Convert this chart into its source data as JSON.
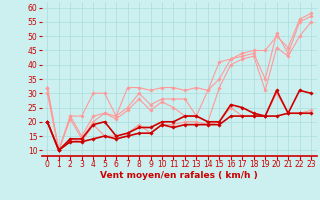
{
  "x": [
    0,
    1,
    2,
    3,
    4,
    5,
    6,
    7,
    8,
    9,
    10,
    11,
    12,
    13,
    14,
    15,
    16,
    17,
    18,
    19,
    20,
    21,
    22,
    23
  ],
  "series": [
    {
      "color": "#FF9999",
      "lw": 0.8,
      "marker": "D",
      "ms": 1.8,
      "y": [
        32,
        10,
        22,
        22,
        30,
        30,
        22,
        32,
        32,
        31,
        32,
        32,
        31,
        32,
        31,
        41,
        42,
        44,
        45,
        45,
        50,
        46,
        56,
        58
      ]
    },
    {
      "color": "#FF9999",
      "lw": 0.8,
      "marker": "D",
      "ms": 1.8,
      "y": [
        32,
        10,
        22,
        15,
        22,
        23,
        22,
        25,
        30,
        26,
        28,
        28,
        28,
        22,
        31,
        35,
        42,
        43,
        44,
        35,
        51,
        44,
        55,
        57
      ]
    },
    {
      "color": "#FF9999",
      "lw": 0.8,
      "marker": "D",
      "ms": 1.8,
      "y": [
        30,
        10,
        21,
        14,
        20,
        23,
        21,
        24,
        28,
        24,
        27,
        25,
        22,
        22,
        20,
        32,
        40,
        42,
        43,
        31,
        46,
        43,
        50,
        55
      ]
    },
    {
      "color": "#FF9999",
      "lw": 0.8,
      "marker": "D",
      "ms": 1.8,
      "y": [
        20,
        10,
        14,
        13,
        19,
        15,
        15,
        16,
        19,
        16,
        19,
        19,
        20,
        20,
        19,
        20,
        25,
        22,
        22,
        22,
        30,
        23,
        23,
        24
      ]
    },
    {
      "color": "#CC0000",
      "lw": 1.2,
      "marker": "D",
      "ms": 1.8,
      "y": [
        20,
        10,
        14,
        14,
        19,
        20,
        15,
        16,
        18,
        18,
        20,
        20,
        22,
        22,
        20,
        20,
        26,
        25,
        23,
        22,
        31,
        23,
        31,
        30
      ]
    },
    {
      "color": "#CC0000",
      "lw": 1.2,
      "marker": "D",
      "ms": 1.8,
      "y": [
        20,
        10,
        13,
        13,
        14,
        15,
        14,
        15,
        16,
        16,
        19,
        18,
        19,
        19,
        19,
        19,
        22,
        22,
        22,
        22,
        22,
        23,
        23,
        23
      ]
    }
  ],
  "xlabel": "Vent moyen/en rafales ( km/h )",
  "xlim": [
    -0.5,
    23.5
  ],
  "ylim": [
    8,
    62
  ],
  "yticks": [
    10,
    15,
    20,
    25,
    30,
    35,
    40,
    45,
    50,
    55,
    60
  ],
  "xticks": [
    0,
    1,
    2,
    3,
    4,
    5,
    6,
    7,
    8,
    9,
    10,
    11,
    12,
    13,
    14,
    15,
    16,
    17,
    18,
    19,
    20,
    21,
    22,
    23
  ],
  "bg_color": "#CCF0F0",
  "grid_color": "#AADDDD",
  "tick_color": "#CC0000",
  "xlabel_color": "#CC0000",
  "xlabel_fontsize": 6.5,
  "tick_fontsize": 5.5,
  "fig_w": 3.2,
  "fig_h": 2.0,
  "dpi": 100
}
